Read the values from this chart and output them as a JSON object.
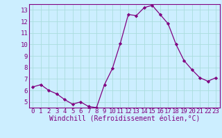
{
  "x": [
    0,
    1,
    2,
    3,
    4,
    5,
    6,
    7,
    8,
    9,
    10,
    11,
    12,
    13,
    14,
    15,
    16,
    17,
    18,
    19,
    20,
    21,
    22,
    23
  ],
  "y": [
    6.3,
    6.5,
    6.0,
    5.7,
    5.2,
    4.8,
    5.0,
    4.6,
    4.5,
    6.5,
    7.9,
    10.1,
    12.6,
    12.5,
    13.2,
    13.4,
    12.6,
    11.8,
    10.0,
    8.6,
    7.8,
    7.1,
    6.8,
    7.1
  ],
  "line_color": "#800080",
  "marker": "D",
  "marker_size": 2.2,
  "bg_color": "#cceeff",
  "grid_color": "#aadddd",
  "xlabel": "Windchill (Refroidissement éolien,°C)",
  "ylim": [
    4.5,
    13.5
  ],
  "xlim": [
    -0.5,
    23.5
  ],
  "yticks": [
    5,
    6,
    7,
    8,
    9,
    10,
    11,
    12,
    13
  ],
  "xticks": [
    0,
    1,
    2,
    3,
    4,
    5,
    6,
    7,
    8,
    9,
    10,
    11,
    12,
    13,
    14,
    15,
    16,
    17,
    18,
    19,
    20,
    21,
    22,
    23
  ],
  "tick_label_size": 6.5,
  "xlabel_size": 7.0,
  "linewidth": 0.9
}
